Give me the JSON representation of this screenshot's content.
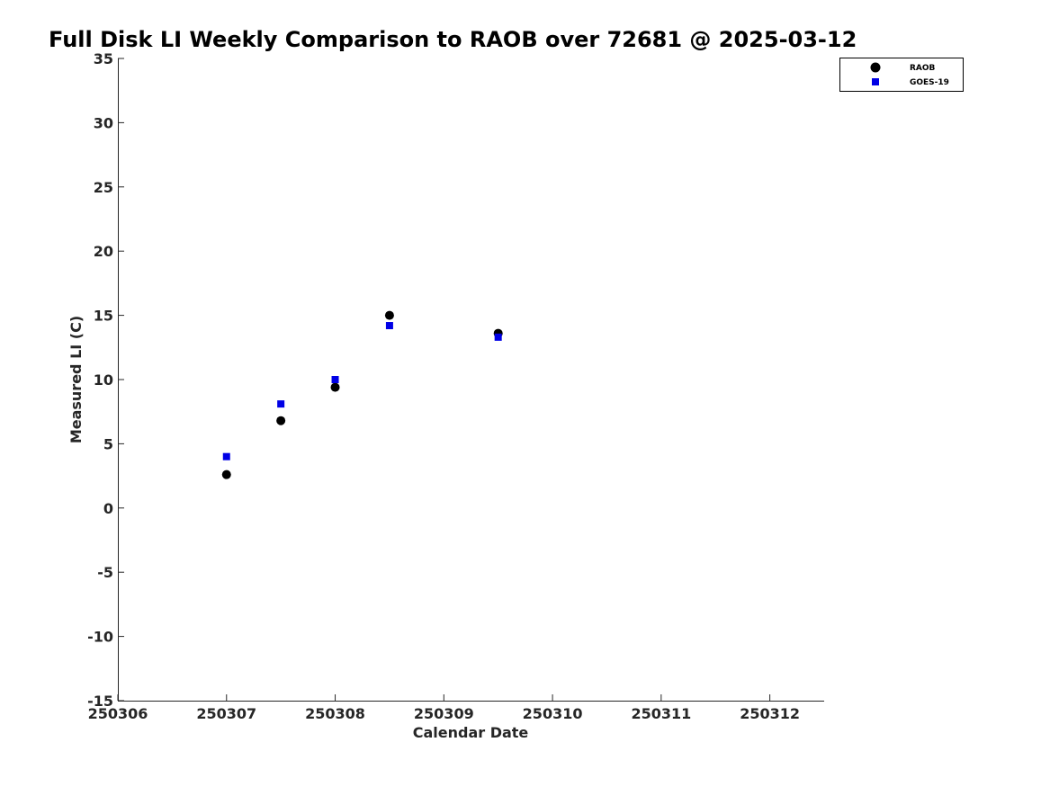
{
  "chart_data": {
    "type": "scatter",
    "title": "Full Disk LI Weekly Comparison to RAOB over 72681 @ 2025-03-12",
    "xlabel": "Calendar Date",
    "ylabel": "Measured LI (C)",
    "xlim": [
      250306,
      250312.5
    ],
    "ylim": [
      -15,
      35
    ],
    "xticks": [
      250306,
      250307,
      250308,
      250309,
      250310,
      250311,
      250312
    ],
    "xtick_labels": [
      "250306",
      "250307",
      "250308",
      "250309",
      "250310",
      "250311",
      "250312"
    ],
    "yticks": [
      35,
      30,
      25,
      20,
      15,
      10,
      5,
      0,
      -5,
      -10,
      -15
    ],
    "ytick_labels": [
      "35",
      "30",
      "25",
      "20",
      "15",
      "10",
      "5",
      "0",
      "-5",
      "-10",
      "-15"
    ],
    "legend_position": "top-right",
    "series": [
      {
        "name": "RAOB",
        "marker": "circle",
        "color": "#000000",
        "x": [
          250307,
          250307.5,
          250308,
          250308.5,
          250309.5
        ],
        "y": [
          2.6,
          6.8,
          9.4,
          15.0,
          13.6
        ]
      },
      {
        "name": "GOES-19",
        "marker": "square",
        "color": "#0000e6",
        "x": [
          250307,
          250307.5,
          250308,
          250308.5,
          250309.5
        ],
        "y": [
          4.0,
          8.1,
          10.0,
          14.2,
          13.3
        ]
      }
    ]
  }
}
